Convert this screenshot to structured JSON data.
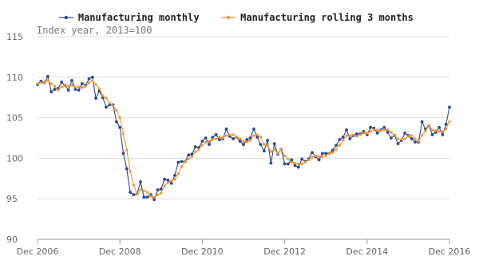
{
  "chart_data": {
    "type": "line",
    "subtitle": "Index year, 2013=100",
    "legend": "top",
    "grid": true,
    "x": [
      "2006-12",
      "2007-01",
      "2007-02",
      "2007-03",
      "2007-04",
      "2007-05",
      "2007-06",
      "2007-07",
      "2007-08",
      "2007-09",
      "2007-10",
      "2007-11",
      "2007-12",
      "2008-01",
      "2008-02",
      "2008-03",
      "2008-04",
      "2008-05",
      "2008-06",
      "2008-07",
      "2008-08",
      "2008-09",
      "2008-10",
      "2008-11",
      "2008-12",
      "2009-01",
      "2009-02",
      "2009-03",
      "2009-04",
      "2009-05",
      "2009-06",
      "2009-07",
      "2009-08",
      "2009-09",
      "2009-10",
      "2009-11",
      "2009-12",
      "2010-01",
      "2010-02",
      "2010-03",
      "2010-04",
      "2010-05",
      "2010-06",
      "2010-07",
      "2010-08",
      "2010-09",
      "2010-10",
      "2010-11",
      "2010-12",
      "2011-01",
      "2011-02",
      "2011-03",
      "2011-04",
      "2011-05",
      "2011-06",
      "2011-07",
      "2011-08",
      "2011-09",
      "2011-10",
      "2011-11",
      "2011-12",
      "2012-01",
      "2012-02",
      "2012-03",
      "2012-04",
      "2012-05",
      "2012-06",
      "2012-07",
      "2012-08",
      "2012-09",
      "2012-10",
      "2012-11",
      "2012-12",
      "2013-01",
      "2013-02",
      "2013-03",
      "2013-04",
      "2013-05",
      "2013-06",
      "2013-07",
      "2013-08",
      "2013-09",
      "2013-10",
      "2013-11",
      "2013-12",
      "2014-01",
      "2014-02",
      "2014-03",
      "2014-04",
      "2014-05",
      "2014-06",
      "2014-07",
      "2014-08",
      "2014-09",
      "2014-10",
      "2014-11",
      "2014-12",
      "2015-01",
      "2015-02",
      "2015-03",
      "2015-04",
      "2015-05",
      "2015-06",
      "2015-07",
      "2015-08",
      "2015-09",
      "2015-10",
      "2015-11",
      "2015-12",
      "2016-01",
      "2016-02",
      "2016-03",
      "2016-04",
      "2016-05",
      "2016-06",
      "2016-07",
      "2016-08",
      "2016-09",
      "2016-10",
      "2016-11",
      "2016-12"
    ],
    "xlim": [
      "2006-12",
      "2016-12"
    ],
    "xticks": [
      {
        "value": "2006-12",
        "label": "Dec 2006"
      },
      {
        "value": "2008-12",
        "label": "Dec 2008"
      },
      {
        "value": "2010-12",
        "label": "Dec 2010"
      },
      {
        "value": "2012-12",
        "label": "Dec 2012"
      },
      {
        "value": "2014-12",
        "label": "Dec 2014"
      },
      {
        "value": "2016-12",
        "label": "Dec 2016"
      }
    ],
    "ylim": [
      90,
      115
    ],
    "yticks": [
      90,
      95,
      100,
      105,
      110,
      115
    ],
    "series": [
      {
        "name": "Manufacturing monthly",
        "color": "#2b4a8e",
        "values": [
          109.1,
          109.5,
          109.3,
          110.1,
          108.2,
          108.5,
          108.6,
          109.4,
          109.0,
          108.4,
          109.6,
          108.5,
          108.4,
          109.2,
          109.0,
          109.8,
          110.0,
          107.4,
          108.3,
          107.5,
          106.3,
          106.6,
          106.6,
          104.5,
          103.8,
          100.6,
          98.7,
          95.8,
          95.5,
          95.6,
          97.1,
          95.2,
          95.2,
          95.5,
          94.9,
          96.1,
          96.2,
          97.4,
          97.3,
          96.9,
          97.9,
          99.5,
          99.6,
          99.6,
          100.4,
          100.5,
          101.4,
          101.3,
          102.1,
          102.5,
          101.7,
          102.6,
          102.9,
          102.3,
          102.4,
          103.6,
          102.7,
          102.4,
          102.6,
          102.1,
          101.7,
          102.3,
          102.5,
          103.6,
          102.6,
          101.7,
          100.9,
          102.2,
          99.4,
          101.8,
          100.5,
          101.1,
          99.3,
          99.3,
          99.8,
          99.1,
          98.9,
          99.9,
          99.6,
          99.9,
          100.7,
          100.2,
          99.8,
          100.6,
          100.6,
          100.6,
          101.0,
          101.6,
          102.3,
          102.6,
          103.5,
          102.4,
          102.8,
          103.0,
          103.0,
          103.3,
          102.9,
          103.8,
          103.7,
          103.1,
          103.5,
          103.8,
          103.2,
          102.5,
          102.8,
          101.8,
          102.2,
          103.1,
          102.8,
          102.4,
          102.0,
          102.0,
          104.5,
          103.6,
          104.0,
          102.9,
          103.2,
          103.8,
          102.9,
          104.2,
          106.3
        ]
      },
      {
        "name": "Manufacturing rolling 3 months",
        "color": "#f39430",
        "values": [
          109.2,
          109.3,
          109.3,
          109.6,
          109.2,
          108.9,
          108.4,
          108.8,
          109.0,
          108.9,
          109.0,
          108.8,
          108.8,
          108.7,
          108.9,
          109.3,
          109.6,
          109.1,
          108.6,
          107.7,
          107.4,
          106.8,
          106.5,
          105.9,
          105.0,
          103.0,
          101.0,
          98.4,
          96.7,
          95.6,
          96.1,
          96.0,
          95.8,
          95.3,
          95.2,
          95.5,
          95.7,
          96.6,
          97.0,
          97.2,
          97.4,
          98.1,
          99.0,
          99.6,
          99.9,
          100.2,
          100.8,
          101.1,
          101.6,
          102.0,
          102.1,
          102.3,
          102.4,
          102.6,
          102.5,
          102.8,
          102.9,
          102.9,
          102.6,
          102.4,
          102.1,
          102.0,
          102.2,
          102.8,
          102.9,
          102.6,
          101.7,
          101.6,
          100.8,
          101.1,
          100.6,
          101.1,
          100.3,
          99.9,
          99.5,
          99.4,
          99.3,
          99.3,
          99.5,
          99.8,
          100.1,
          100.3,
          100.2,
          100.2,
          100.3,
          100.6,
          100.7,
          101.1,
          101.6,
          102.2,
          102.8,
          102.8,
          102.9,
          102.7,
          102.9,
          103.1,
          103.1,
          103.3,
          103.5,
          103.5,
          103.4,
          103.5,
          103.5,
          103.2,
          102.8,
          102.4,
          102.3,
          102.4,
          102.7,
          102.8,
          102.4,
          102.1,
          102.8,
          103.4,
          104.0,
          103.5,
          103.4,
          103.3,
          103.3,
          103.6,
          104.5
        ]
      }
    ]
  }
}
